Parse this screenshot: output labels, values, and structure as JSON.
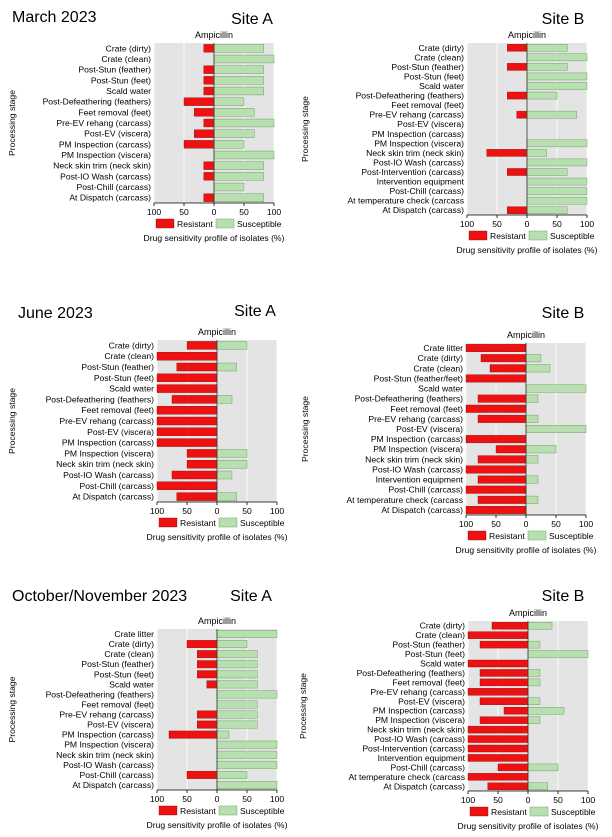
{
  "labels": {
    "drug": "Ampicillin",
    "ylabel": "Processing stage",
    "xlabel": "Drug sensitivity profile of isolates (%)",
    "legend_resistant": "Resistant",
    "legend_susceptible": "Susceptible",
    "ticks_left": [
      "100",
      "50",
      "0"
    ],
    "ticks_right": [
      "50",
      "100"
    ]
  },
  "colors": {
    "resistant": "#ee1111",
    "susceptible": "#b8dfb0",
    "plot_bg": "#e4e4e4"
  },
  "periods": [
    {
      "title": "March 2023"
    },
    {
      "title": "June 2023"
    },
    {
      "title": "October/November 2023"
    }
  ],
  "chart_data": [
    {
      "type": "bar",
      "period": "March 2023",
      "site": "Site A",
      "title": "Ampicillin",
      "xlabel": "Drug sensitivity profile of isolates (%)",
      "ylabel": "Processing stage",
      "xlim": [
        -100,
        100
      ],
      "categories": [
        "Crate (dirty)",
        "Crate (clean)",
        "Post-Stun (feather)",
        "Post-Stun (feet)",
        "Scald water",
        "Post-Defeathering (feathers)",
        "Feet removal (feet)",
        "Pre-EV rehang (carcass)",
        "Post-EV (viscera)",
        "PM Inspection (carcass)",
        "PM Inspection (viscera)",
        "Neck skin trim (neck skin)",
        "Post-IO Wash (carcass)",
        "Post-Chill (carcass)",
        "At Dispatch (carcass)"
      ],
      "series": [
        {
          "name": "Resistant",
          "values": [
            17,
            0,
            17,
            17,
            17,
            50,
            33,
            17,
            33,
            50,
            0,
            17,
            17,
            0,
            17
          ]
        },
        {
          "name": "Susceptible",
          "values": [
            83,
            100,
            83,
            83,
            83,
            50,
            67,
            100,
            67,
            50,
            100,
            83,
            83,
            50,
            83
          ]
        }
      ]
    },
    {
      "type": "bar",
      "period": "March 2023",
      "site": "Site B",
      "title": "Ampicillin",
      "xlabel": "Drug sensitivity profile of isolates (%)",
      "ylabel": "Processing stage",
      "xlim": [
        -100,
        100
      ],
      "categories": [
        "Crate (dirty)",
        "Crate (clean)",
        "Post-Stun (feather)",
        "Post-Stun (feet)",
        "Scald water",
        "Post-Defeathering (feathers)",
        "Feet removal (feet)",
        "Pre-EV rehang (carcass)",
        "Post-EV (viscera)",
        "PM Inspection (carcass)",
        "PM Inspection (viscera)",
        "Neck skin trim (neck skin)",
        "Post-IO Wash (carcass)",
        "Post-Intervention (carcass)",
        "Intervention equipment",
        "Post-Chill (carcass)",
        "At temperature check (carcass",
        "At Dispatch (carcass)"
      ],
      "series": [
        {
          "name": "Resistant",
          "values": [
            33,
            0,
            33,
            0,
            0,
            33,
            0,
            17,
            0,
            0,
            0,
            67,
            0,
            33,
            0,
            0,
            0,
            33
          ]
        },
        {
          "name": "Susceptible",
          "values": [
            67,
            100,
            67,
            100,
            100,
            50,
            0,
            83,
            0,
            0,
            100,
            33,
            100,
            67,
            100,
            100,
            100,
            67
          ]
        }
      ]
    },
    {
      "type": "bar",
      "period": "June 2023",
      "site": "Site A",
      "title": "Ampicillin",
      "xlabel": "Drug sensitivity profile of isolates (%)",
      "ylabel": "Processing stage",
      "xlim": [
        -100,
        100
      ],
      "categories": [
        "Crate (dirty)",
        "Crate (clean)",
        "Post-Stun (feather)",
        "Post-Stun (feet)",
        "Scald water",
        "Post-Defeathering (feathers)",
        "Feet removal (feet)",
        "Pre-EV rehang (carcass)",
        "Post-EV (viscera)",
        "PM Inspection (carcass)",
        "PM Inspection (viscera)",
        "Neck skin trim (neck skin)",
        "Post-IO Wash (carcass)",
        "Post-Chill (carcass)",
        "At Dispatch (carcass)"
      ],
      "series": [
        {
          "name": "Resistant",
          "values": [
            50,
            100,
            67,
            100,
            100,
            75,
            100,
            100,
            100,
            100,
            50,
            50,
            75,
            100,
            67
          ]
        },
        {
          "name": "Susceptible",
          "values": [
            50,
            0,
            33,
            0,
            0,
            25,
            0,
            0,
            0,
            0,
            50,
            50,
            25,
            0,
            33
          ]
        }
      ]
    },
    {
      "type": "bar",
      "period": "June 2023",
      "site": "Site B",
      "title": "Ampicillin",
      "xlabel": "Drug sensitivity profile of isolates (%)",
      "ylabel": "Processing stage",
      "xlim": [
        -100,
        100
      ],
      "categories": [
        "Crate litter",
        "Crate (dirty)",
        "Crate (clean)",
        "Post-Stun (feather/feet)",
        "Scald water",
        "Post-Defeathering (feathers)",
        "Feet removal (feet)",
        "Pre-EV rehang (carcass)",
        "Post-EV (viscera)",
        "PM Inspection (carcass)",
        "PM Inspection (viscera)",
        "Neck skin trim (neck skin)",
        "Post-IO Wash (carcass)",
        "Intervention equipment",
        "Post-Chill (carcass)",
        "At temperature check (carcass",
        "At Dispatch (carcass)"
      ],
      "series": [
        {
          "name": "Resistant",
          "values": [
            100,
            75,
            60,
            100,
            0,
            80,
            100,
            80,
            0,
            100,
            50,
            80,
            100,
            80,
            100,
            80,
            100
          ]
        },
        {
          "name": "Susceptible",
          "values": [
            0,
            25,
            40,
            0,
            100,
            20,
            0,
            20,
            100,
            0,
            50,
            20,
            0,
            20,
            0,
            20,
            0
          ]
        }
      ]
    },
    {
      "type": "bar",
      "period": "October/November 2023",
      "site": "Site A",
      "title": "Ampicillin",
      "xlabel": "Drug sensitivity profile of isolates (%)",
      "ylabel": "Processing stage",
      "xlim": [
        -100,
        100
      ],
      "categories": [
        "Crate litter",
        "Crate (dirty)",
        "Crate (clean)",
        "Post-Stun (feather)",
        "Post-Stun (feet)",
        "Scald water",
        "Post-Defeathering (feathers)",
        "Feet removal (feet)",
        "Pre-EV rehang (carcass)",
        "Post-EV (viscera)",
        "PM Inspection (carcass)",
        "PM Inspection (viscera)",
        "Neck skin trim (neck skin)",
        "Post-IO Wash (carcass)",
        "Post-Chill (carcass)",
        "At Dispatch (carcass)"
      ],
      "series": [
        {
          "name": "Resistant",
          "values": [
            0,
            50,
            33,
            33,
            33,
            17,
            0,
            0,
            33,
            33,
            80,
            0,
            0,
            0,
            50,
            0
          ]
        },
        {
          "name": "Susceptible",
          "values": [
            100,
            50,
            67,
            67,
            67,
            67,
            100,
            67,
            67,
            67,
            20,
            100,
            100,
            100,
            50,
            100
          ]
        }
      ]
    },
    {
      "type": "bar",
      "period": "October/November 2023",
      "site": "Site B",
      "title": "Ampicillin",
      "xlabel": "Drug sensitivity profile of isolates (%)",
      "ylabel": "Processing stage",
      "xlim": [
        -100,
        100
      ],
      "categories": [
        "Crate (dirty)",
        "Crate (clean)",
        "Post-Stun (feather)",
        "Post-Stun (feet)",
        "Scald water",
        "Post-Defeathering (feathers)",
        "Feet removal (feet)",
        "Pre-EV rehang (carcass)",
        "Post-EV (viscera)",
        "PM Inspection (carcass)",
        "PM Inspection (viscera)",
        "Neck skin trim (neck skin)",
        "Post-IO Wash (carcass)",
        "Post-Intervention (carcass)",
        "Intervention equipment",
        "Post-Chill (carcass)",
        "At temperature check (carcass",
        "At Dispatch (carcass)"
      ],
      "series": [
        {
          "name": "Resistant",
          "values": [
            60,
            100,
            80,
            0,
            100,
            80,
            80,
            100,
            80,
            40,
            80,
            100,
            100,
            100,
            100,
            50,
            100,
            67
          ]
        },
        {
          "name": "Susceptible",
          "values": [
            40,
            0,
            20,
            100,
            0,
            20,
            20,
            0,
            20,
            60,
            20,
            0,
            0,
            0,
            0,
            50,
            0,
            33
          ]
        }
      ]
    }
  ]
}
